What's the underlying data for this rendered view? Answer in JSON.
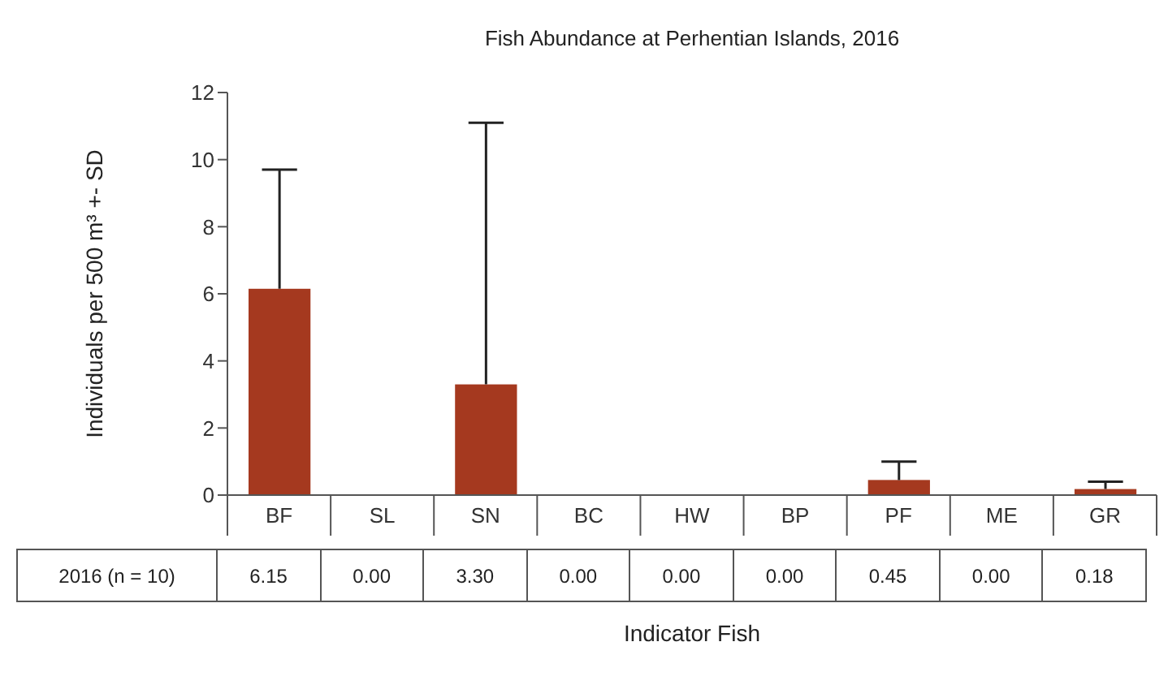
{
  "chart_data": {
    "type": "bar",
    "title": "Fish Abundance at Perhentian Islands, 2016",
    "xlabel": "Indicator Fish",
    "ylabel": "Individuals per 500 m³ +- SD",
    "categories": [
      "BF",
      "SL",
      "SN",
      "BC",
      "HW",
      "BP",
      "PF",
      "ME",
      "GR"
    ],
    "series": [
      {
        "name": "2016 (n = 10)",
        "color": "#a5391f",
        "values": [
          6.15,
          0,
          3.3,
          0,
          0,
          0,
          0.45,
          0,
          0.18
        ],
        "errors": [
          [
            6.15,
            9.7
          ],
          null,
          [
            3.3,
            11.1
          ],
          null,
          null,
          null,
          [
            0.45,
            1.0
          ],
          null,
          [
            0.18,
            0.4
          ]
        ],
        "value_labels": [
          "6.15",
          "0.00",
          "3.30",
          "0.00",
          "0.00",
          "0.00",
          "0.45",
          "0.00",
          "0.18"
        ]
      }
    ],
    "ylim": [
      0,
      12
    ],
    "yticks": [
      0,
      2,
      4,
      6,
      8,
      10,
      12
    ],
    "grid": false,
    "legend": false
  }
}
